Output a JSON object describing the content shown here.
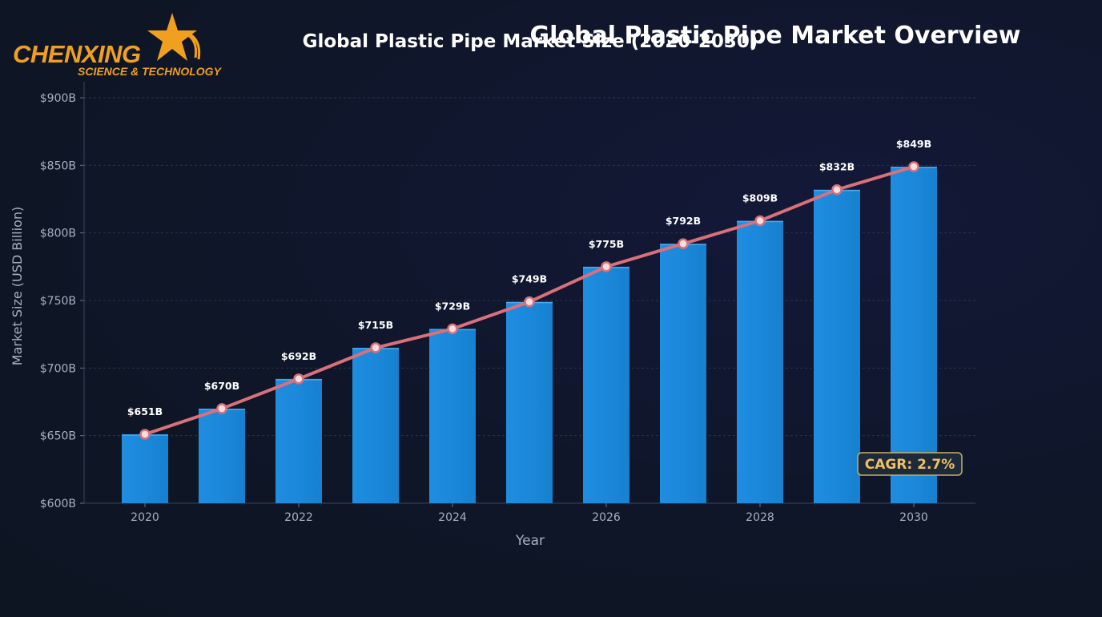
{
  "logo": {
    "name": "CHENXING",
    "tagline": "SCIENCE & TECHNOLOGY",
    "colors": {
      "primary": "#f0a01e",
      "secondary": "#f5b82e"
    }
  },
  "overview_title": "Global Plastic Pipe Market Overview",
  "chart_data": {
    "type": "bar",
    "title": "Global Plastic Pipe Market Size (2020-2030)",
    "xlabel": "Year",
    "ylabel": "Market Size (USD Billion)",
    "x": [
      2020,
      2021,
      2022,
      2023,
      2024,
      2025,
      2026,
      2027,
      2028,
      2029,
      2030
    ],
    "x_ticks": [
      "2020",
      "2022",
      "2024",
      "2026",
      "2028",
      "2030"
    ],
    "values": [
      651,
      670,
      692,
      715,
      729,
      749,
      775,
      792,
      809,
      832,
      849
    ],
    "value_labels": [
      "$651B",
      "$670B",
      "$692B",
      "$715B",
      "$729B",
      "$749B",
      "$775B",
      "$792B",
      "$809B",
      "$832B",
      "$849B"
    ],
    "ylim": [
      600,
      900
    ],
    "y_ticks": [
      600,
      650,
      700,
      750,
      800,
      850,
      900
    ],
    "y_tick_labels": [
      "$600B",
      "$650B",
      "$700B",
      "$750B",
      "$800B",
      "$850B",
      "$900B"
    ],
    "overlay": "line",
    "annotation": "CAGR: 2.7%",
    "grid": true,
    "colors": {
      "bar": "#1a86d8",
      "line": "#d9707a",
      "marker_fill": "#f4dede",
      "annotation_text": "#f0c060",
      "annotation_border": "#c8b060"
    }
  }
}
